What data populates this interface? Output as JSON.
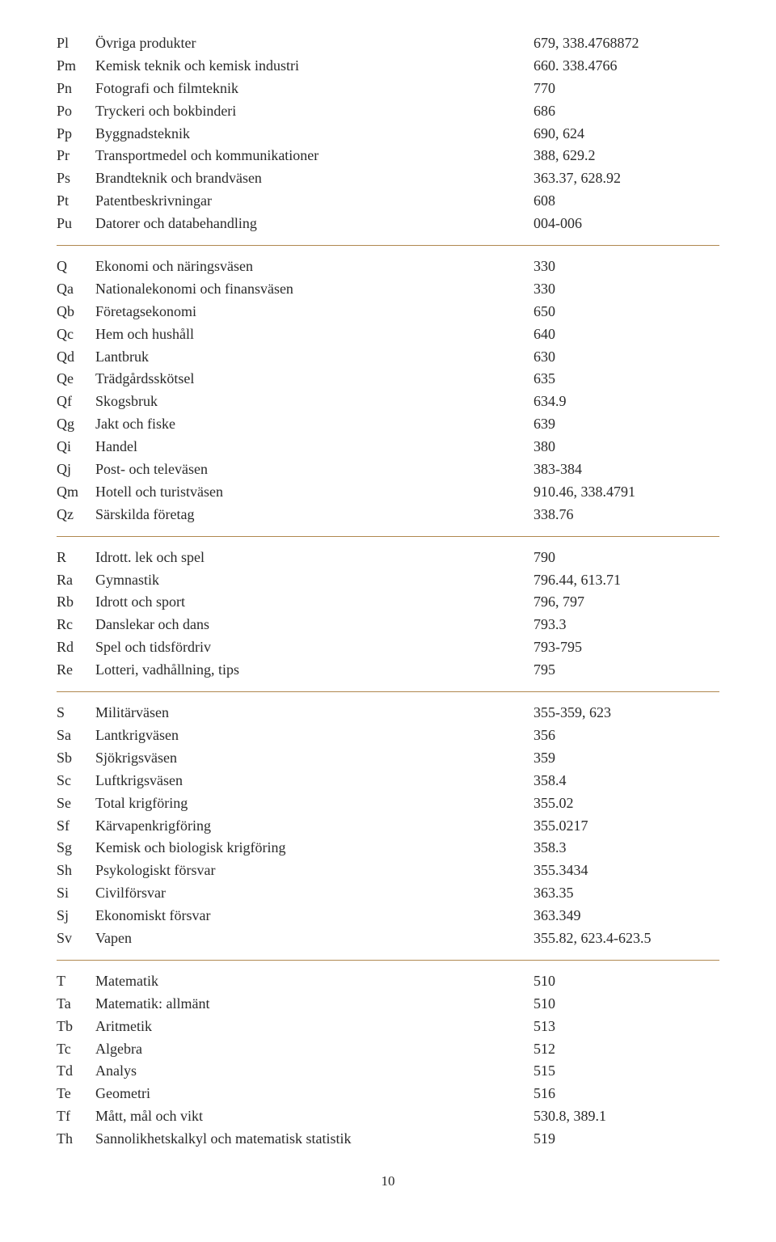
{
  "sections": [
    {
      "rows": [
        {
          "c": "Pl",
          "l": "Övriga produkter",
          "v": "679, 338.4768872"
        },
        {
          "c": "Pm",
          "l": "Kemisk teknik och kemisk industri",
          "v": "660. 338.4766"
        },
        {
          "c": "Pn",
          "l": "Fotografi och filmteknik",
          "v": "770"
        },
        {
          "c": "Po",
          "l": "Tryckeri och bokbinderi",
          "v": "686"
        },
        {
          "c": "Pp",
          "l": "Byggnadsteknik",
          "v": "690, 624"
        },
        {
          "c": "Pr",
          "l": "Transportmedel och kommunikationer",
          "v": "388, 629.2"
        },
        {
          "c": "Ps",
          "l": "Brandteknik och brandväsen",
          "v": "363.37, 628.92"
        },
        {
          "c": "Pt",
          "l": "Patentbeskrivningar",
          "v": "608"
        },
        {
          "c": "Pu",
          "l": "Datorer och databehandling",
          "v": "004-006"
        }
      ]
    },
    {
      "rows": [
        {
          "c": "Q",
          "l": "Ekonomi och näringsväsen",
          "v": "330"
        },
        {
          "c": "Qa",
          "l": "Nationalekonomi och finansväsen",
          "v": "330"
        },
        {
          "c": "Qb",
          "l": "Företagsekonomi",
          "v": "650"
        },
        {
          "c": "Qc",
          "l": "Hem och hushåll",
          "v": "640"
        },
        {
          "c": "Qd",
          "l": "Lantbruk",
          "v": "630"
        },
        {
          "c": "Qe",
          "l": "Trädgårdsskötsel",
          "v": "635"
        },
        {
          "c": "Qf",
          "l": "Skogsbruk",
          "v": "634.9"
        },
        {
          "c": "Qg",
          "l": "Jakt och fiske",
          "v": "639"
        },
        {
          "c": "Qi",
          "l": "Handel",
          "v": "380"
        },
        {
          "c": "Qj",
          "l": "Post- och televäsen",
          "v": "383-384"
        },
        {
          "c": "Qm",
          "l": "Hotell och turistväsen",
          "v": "910.46, 338.4791"
        },
        {
          "c": "Qz",
          "l": "Särskilda företag",
          "v": "338.76"
        }
      ]
    },
    {
      "rows": [
        {
          "c": "R",
          "l": "Idrott. lek och spel",
          "v": "790"
        },
        {
          "c": "Ra",
          "l": "Gymnastik",
          "v": "796.44, 613.71"
        },
        {
          "c": "Rb",
          "l": "Idrott och sport",
          "v": "796, 797"
        },
        {
          "c": "Rc",
          "l": "Danslekar och dans",
          "v": "793.3"
        },
        {
          "c": "Rd",
          "l": "Spel och tidsfördriv",
          "v": "793-795"
        },
        {
          "c": "Re",
          "l": "Lotteri, vadhållning, tips",
          "v": "795"
        }
      ]
    },
    {
      "rows": [
        {
          "c": "S",
          "l": "Militärväsen",
          "v": "355-359, 623"
        },
        {
          "c": "Sa",
          "l": "Lantkrigväsen",
          "v": "356"
        },
        {
          "c": "Sb",
          "l": "Sjökrigsväsen",
          "v": "359"
        },
        {
          "c": "Sc",
          "l": "Luftkrigsväsen",
          "v": "358.4"
        },
        {
          "c": "Se",
          "l": "Total krigföring",
          "v": "355.02"
        },
        {
          "c": "Sf",
          "l": "Kärvapenkrigföring",
          "v": "355.0217"
        },
        {
          "c": "Sg",
          "l": "Kemisk och biologisk krigföring",
          "v": "358.3"
        },
        {
          "c": "Sh",
          "l": "Psykologiskt försvar",
          "v": "355.3434"
        },
        {
          "c": "Si",
          "l": "Civilförsvar",
          "v": "363.35"
        },
        {
          "c": "Sj",
          "l": "Ekonomiskt försvar",
          "v": "363.349"
        },
        {
          "c": "Sv",
          "l": "Vapen",
          "v": "355.82, 623.4-623.5"
        }
      ]
    },
    {
      "rows": [
        {
          "c": "T",
          "l": "Matematik",
          "v": "510"
        },
        {
          "c": "Ta",
          "l": "Matematik: allmänt",
          "v": "510"
        },
        {
          "c": "Tb",
          "l": "Aritmetik",
          "v": "513"
        },
        {
          "c": "Tc",
          "l": "Algebra",
          "v": "512"
        },
        {
          "c": "Td",
          "l": "Analys",
          "v": "515"
        },
        {
          "c": "Te",
          "l": "Geometri",
          "v": "516"
        },
        {
          "c": "Tf",
          "l": "Mått, mål och vikt",
          "v": "530.8, 389.1"
        },
        {
          "c": "Th",
          "l": "Sannolikhetskalkyl och matematisk statistik",
          "v": "519"
        }
      ],
      "no_divider_after": true
    }
  ],
  "page_number": "10"
}
